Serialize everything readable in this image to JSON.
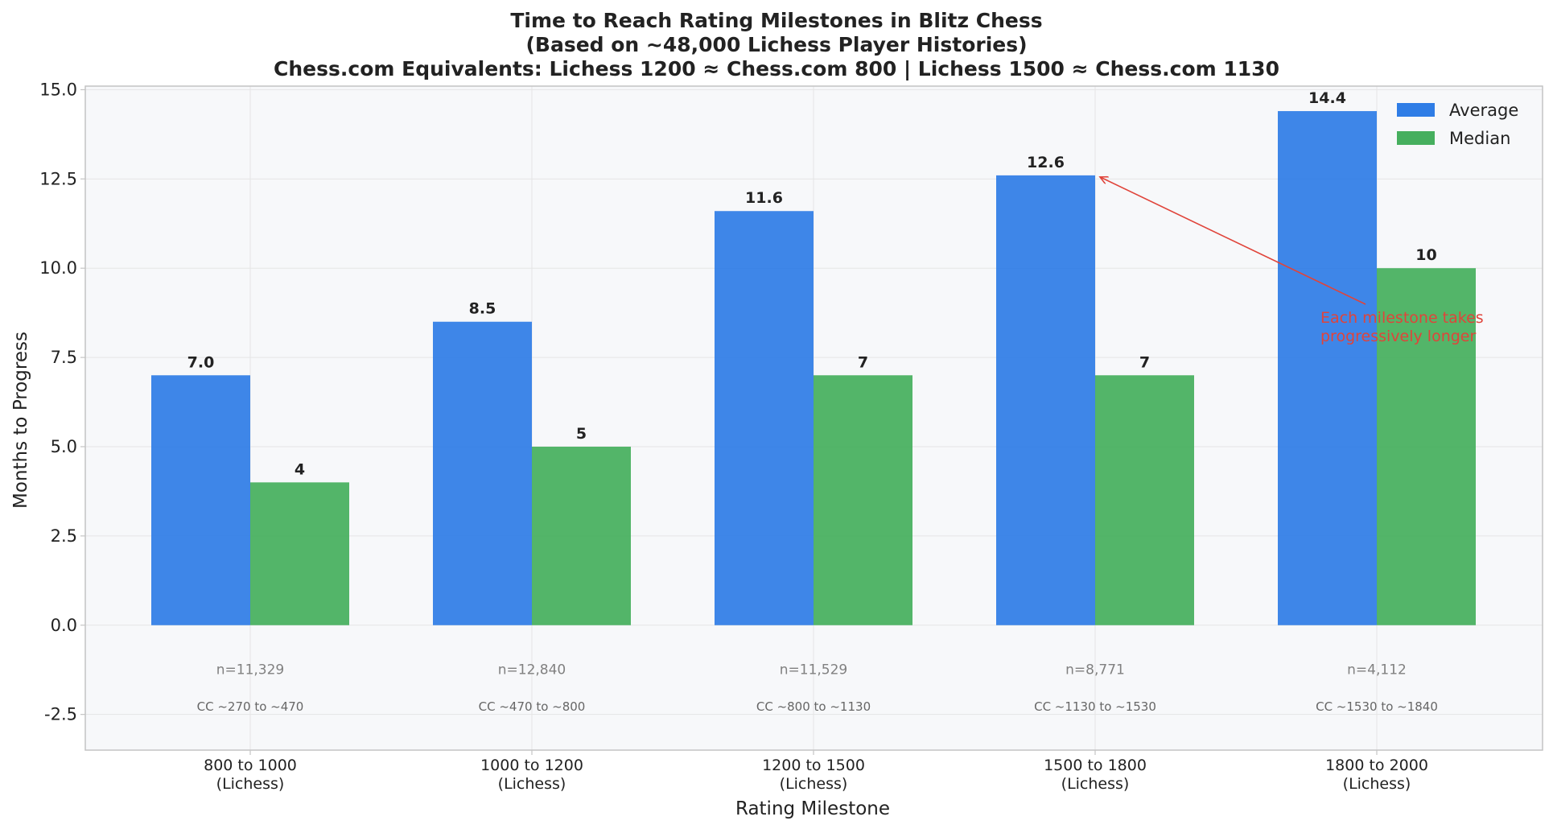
{
  "chart_data": {
    "type": "bar",
    "title": [
      "Time to Reach Rating Milestones in Blitz Chess",
      "(Based on ~48,000 Lichess Player Histories)",
      "Chess.com Equivalents: Lichess 1200 ≈ Chess.com 800 | Lichess 1500 ≈ Chess.com 1130"
    ],
    "xlabel": "Rating Milestone",
    "ylabel": "Months to Progress",
    "ylim": [
      -3.5,
      15.1
    ],
    "yticks": [
      -2.5,
      0.0,
      2.5,
      5.0,
      7.5,
      10.0,
      12.5,
      15.0
    ],
    "ytick_labels": [
      "-2.5",
      "0.0",
      "2.5",
      "5.0",
      "7.5",
      "10.0",
      "12.5",
      "15.0"
    ],
    "grid": true,
    "legend_position": "top-right",
    "categories": [
      [
        "800 to 1000",
        "(Lichess)"
      ],
      [
        "1000 to 1200",
        "(Lichess)"
      ],
      [
        "1200 to 1500",
        "(Lichess)"
      ],
      [
        "1500 to 1800",
        "(Lichess)"
      ],
      [
        "1800 to 2000",
        "(Lichess)"
      ]
    ],
    "series": [
      {
        "name": "Average",
        "color": "#2f7de6",
        "values": [
          7.0,
          8.5,
          11.6,
          12.6,
          14.4
        ],
        "labels": [
          "7.0",
          "8.5",
          "11.6",
          "12.6",
          "14.4"
        ]
      },
      {
        "name": "Median",
        "color": "#46af5e",
        "values": [
          4,
          5,
          7,
          7,
          10
        ],
        "labels": [
          "4",
          "5",
          "7",
          "7",
          "10"
        ]
      }
    ],
    "sample_sizes": [
      "n=11,329",
      "n=12,840",
      "n=11,529",
      "n=8,771",
      "n=4,112"
    ],
    "chesscom_ranges": [
      "CC ~270 to ~470",
      "CC ~470 to ~800",
      "CC ~800 to ~1130",
      "CC ~1130 to ~1530",
      "CC ~1530 to ~1840"
    ],
    "annotation": {
      "text": [
        "Each milestone takes",
        "progressively longer"
      ],
      "color": "#e0443a",
      "arrow_target": {
        "category_index": 3,
        "value": 12.6
      },
      "text_anchor_value": 8.5
    },
    "colors": {
      "plot_background": "#f7f8fa",
      "grid": "#e5e5e5",
      "spine": "#c4c4c4"
    }
  }
}
